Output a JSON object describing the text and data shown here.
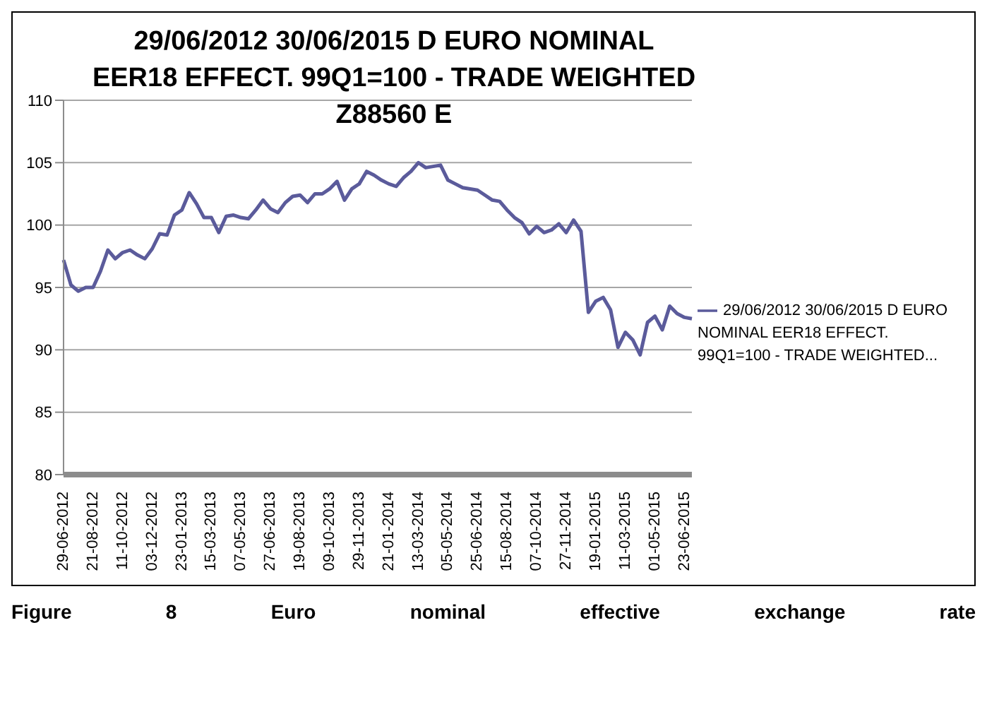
{
  "chart_data": {
    "type": "line",
    "title": "29/06/2012 30/06/2015 D EURO NOMINAL EER18 EFFECT. 99Q1=100 - TRADE WEIGHTED Z88560 E",
    "categories": [
      "29-06-2012",
      null,
      null,
      null,
      "21-08-2012",
      null,
      null,
      null,
      "11-10-2012",
      null,
      null,
      null,
      "03-12-2012",
      null,
      null,
      null,
      "23-01-2013",
      null,
      null,
      null,
      "15-03-2013",
      null,
      null,
      null,
      "07-05-2013",
      null,
      null,
      null,
      "27-06-2013",
      null,
      null,
      null,
      "19-08-2013",
      null,
      null,
      null,
      "09-10-2013",
      null,
      null,
      null,
      "29-11-2013",
      null,
      null,
      null,
      "21-01-2014",
      null,
      null,
      null,
      "13-03-2014",
      null,
      null,
      null,
      "05-05-2014",
      null,
      null,
      null,
      "25-06-2014",
      null,
      null,
      null,
      "15-08-2014",
      null,
      null,
      null,
      "07-10-2014",
      null,
      null,
      null,
      "27-11-2014",
      null,
      null,
      null,
      "19-01-2015",
      null,
      null,
      null,
      "11-03-2015",
      null,
      null,
      null,
      "01-05-2015",
      null,
      null,
      null,
      "23-06-2015",
      null
    ],
    "series": [
      {
        "name": "29/06/2012 30/06/2015 D EURO NOMINAL EER18 EFFECT. 99Q1=100 - TRADE WEIGHTED...",
        "color": "#5b5b9b",
        "values": [
          97.2,
          95.2,
          94.7,
          95.0,
          95.0,
          96.3,
          98.0,
          97.3,
          97.8,
          98.0,
          97.6,
          97.3,
          98.1,
          99.3,
          99.2,
          100.8,
          101.2,
          102.6,
          101.7,
          100.6,
          100.6,
          99.4,
          100.7,
          100.8,
          100.6,
          100.5,
          101.2,
          102.0,
          101.3,
          101.0,
          101.8,
          102.3,
          102.4,
          101.8,
          102.5,
          102.5,
          102.9,
          103.5,
          102.0,
          102.9,
          103.3,
          104.3,
          104.0,
          103.6,
          103.3,
          103.1,
          103.8,
          104.3,
          105.0,
          104.6,
          104.7,
          104.8,
          103.6,
          103.3,
          103.0,
          102.9,
          102.8,
          102.4,
          102.0,
          101.9,
          101.2,
          100.6,
          100.2,
          99.3,
          99.9,
          99.4,
          99.6,
          100.1,
          99.4,
          100.4,
          99.5,
          93.0,
          93.9,
          94.2,
          93.2,
          90.2,
          91.4,
          90.8,
          89.6,
          92.2,
          92.7,
          91.6,
          93.5,
          92.9,
          92.6,
          92.5
        ]
      }
    ],
    "ylim": [
      80,
      110
    ],
    "yticks": [
      80,
      85,
      90,
      95,
      100,
      105,
      110
    ],
    "grid": "y",
    "legend": "right",
    "marker": "none",
    "line_style": "solid",
    "annotations": [
      "Figure 8 Euro nominal effective exchange rate"
    ]
  }
}
